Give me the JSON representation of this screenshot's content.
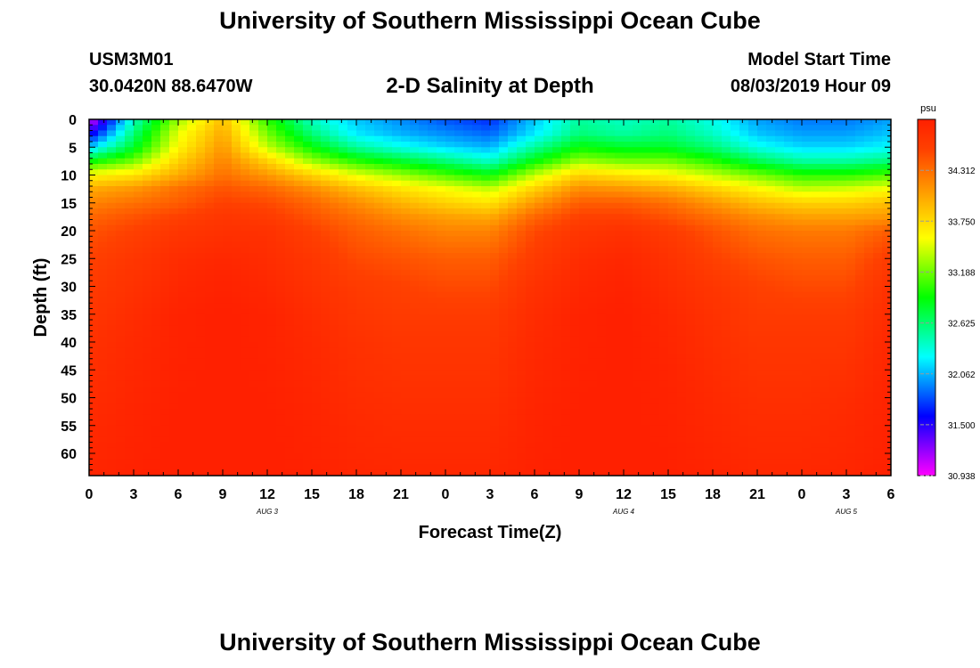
{
  "header": {
    "title": "University of Southern Mississippi Ocean Cube",
    "station": "USM3M01",
    "coords": "30.0420N 88.6470W",
    "plot_title": "2-D Salinity at Depth",
    "start_label": "Model Start Time",
    "start_value": "08/03/2019 Hour 09",
    "bottom_title": "University of Southern Mississippi Ocean Cube"
  },
  "chart_data": {
    "type": "heatmap",
    "title": "2-D Salinity at Depth",
    "xlabel": "Forecast Time(Z)",
    "ylabel": "Depth (ft)",
    "x_tick_labels": [
      "0",
      "3",
      "6",
      "9",
      "12",
      "15",
      "18",
      "21",
      "0",
      "3",
      "6",
      "9",
      "12",
      "15",
      "18",
      "21",
      "0",
      "3",
      "6"
    ],
    "x_hours": [
      0,
      3,
      6,
      9,
      12,
      15,
      18,
      21,
      24,
      27,
      30,
      33,
      36,
      39,
      42,
      45,
      48,
      51,
      54
    ],
    "date_labels": [
      {
        "text": "AUG 3",
        "hour": 12
      },
      {
        "text": "AUG 4",
        "hour": 36
      },
      {
        "text": "AUG 5",
        "hour": 51
      }
    ],
    "xlim": [
      0,
      54
    ],
    "y_tick_labels": [
      "0",
      "5",
      "10",
      "15",
      "20",
      "25",
      "30",
      "35",
      "40",
      "45",
      "50",
      "55",
      "60"
    ],
    "y_ticks": [
      0,
      5,
      10,
      15,
      20,
      25,
      30,
      35,
      40,
      45,
      50,
      55,
      60
    ],
    "ylim": [
      0,
      64
    ],
    "colorbar": {
      "unit": "psu",
      "min": 30.938,
      "max": 34.875,
      "tick_values": [
        34.312,
        33.75,
        33.188,
        32.625,
        32.062,
        31.5,
        30.938
      ],
      "tick_labels": [
        "34.312",
        "33.750",
        "33.188",
        "32.625",
        "32.062",
        "31.500",
        "30.938"
      ],
      "colors": [
        "#ff00ff",
        "#8000ff",
        "#0000ff",
        "#0080ff",
        "#00ffff",
        "#00ff80",
        "#00ff00",
        "#80ff00",
        "#ffff00",
        "#ffc000",
        "#ff8000",
        "#ff4000",
        "#ff2000"
      ]
    },
    "grid": {
      "hours": [
        0,
        3,
        6,
        9,
        12,
        15,
        18,
        21,
        24,
        27,
        30,
        33,
        36,
        39,
        42,
        45,
        48,
        51,
        54
      ],
      "depths": [
        0,
        2.5,
        5,
        7.5,
        10,
        12.5,
        15,
        17.5,
        20,
        25,
        30,
        35,
        40,
        45,
        50,
        55,
        60,
        64
      ],
      "values": [
        [
          31.0,
          32.4,
          33.3,
          33.9,
          33.0,
          32.4,
          32.1,
          31.95,
          31.8,
          31.7,
          32.1,
          32.5,
          32.4,
          32.5,
          32.3,
          32.0,
          31.9,
          31.9,
          32.0
        ],
        [
          31.5,
          32.6,
          33.5,
          34.0,
          33.2,
          32.6,
          32.2,
          32.05,
          31.95,
          31.85,
          32.2,
          32.6,
          32.5,
          32.6,
          32.4,
          32.1,
          32.0,
          32.0,
          32.1
        ],
        [
          32.1,
          32.8,
          33.6,
          34.1,
          33.4,
          32.9,
          32.5,
          32.3,
          32.15,
          32.05,
          32.5,
          32.9,
          32.8,
          32.8,
          32.6,
          32.3,
          32.15,
          32.15,
          32.25
        ],
        [
          32.9,
          33.2,
          33.8,
          34.2,
          33.8,
          33.3,
          33.0,
          32.8,
          32.6,
          32.4,
          32.9,
          33.3,
          33.2,
          33.2,
          33.0,
          32.7,
          32.5,
          32.5,
          32.6
        ],
        [
          33.6,
          33.7,
          34.0,
          34.3,
          34.1,
          33.8,
          33.5,
          33.3,
          33.1,
          32.9,
          33.4,
          33.8,
          33.7,
          33.6,
          33.4,
          33.2,
          33.0,
          33.0,
          33.1
        ],
        [
          34.0,
          34.1,
          34.3,
          34.45,
          34.35,
          34.15,
          33.9,
          33.7,
          33.55,
          33.4,
          33.8,
          34.15,
          34.1,
          34.0,
          33.8,
          33.6,
          33.4,
          33.45,
          33.55
        ],
        [
          34.2,
          34.3,
          34.4,
          34.55,
          34.5,
          34.35,
          34.15,
          33.95,
          33.8,
          33.7,
          34.1,
          34.4,
          34.4,
          34.3,
          34.1,
          33.9,
          33.8,
          33.8,
          33.9
        ],
        [
          34.35,
          34.45,
          34.55,
          34.65,
          34.6,
          34.45,
          34.3,
          34.15,
          34.05,
          34.0,
          34.35,
          34.55,
          34.55,
          34.45,
          34.3,
          34.15,
          34.05,
          34.05,
          34.1
        ],
        [
          34.45,
          34.55,
          34.65,
          34.7,
          34.7,
          34.55,
          34.4,
          34.3,
          34.2,
          34.2,
          34.5,
          34.65,
          34.7,
          34.6,
          34.45,
          34.3,
          34.25,
          34.25,
          34.4
        ],
        [
          34.55,
          34.65,
          34.75,
          34.8,
          34.75,
          34.65,
          34.5,
          34.45,
          34.4,
          34.4,
          34.6,
          34.75,
          34.8,
          34.7,
          34.55,
          34.45,
          34.4,
          34.4,
          34.6
        ],
        [
          34.6,
          34.7,
          34.8,
          34.85,
          34.8,
          34.7,
          34.6,
          34.55,
          34.5,
          34.5,
          34.7,
          34.8,
          34.85,
          34.75,
          34.65,
          34.55,
          34.5,
          34.5,
          34.7
        ],
        [
          34.65,
          34.75,
          34.85,
          34.88,
          34.85,
          34.75,
          34.65,
          34.6,
          34.6,
          34.6,
          34.75,
          34.85,
          34.88,
          34.8,
          34.7,
          34.6,
          34.6,
          34.6,
          34.75
        ],
        [
          34.7,
          34.78,
          34.85,
          34.88,
          34.85,
          34.78,
          34.7,
          34.65,
          34.65,
          34.65,
          34.78,
          34.85,
          34.88,
          34.82,
          34.72,
          34.65,
          34.65,
          34.65,
          34.8
        ],
        [
          34.72,
          34.8,
          34.86,
          34.88,
          34.86,
          34.8,
          34.72,
          34.68,
          34.68,
          34.68,
          34.8,
          34.86,
          34.88,
          34.84,
          34.75,
          34.68,
          34.68,
          34.7,
          34.82
        ],
        [
          34.75,
          34.82,
          34.87,
          34.88,
          34.87,
          34.82,
          34.75,
          34.72,
          34.72,
          34.72,
          34.82,
          34.87,
          34.88,
          34.85,
          34.78,
          34.72,
          34.72,
          34.75,
          34.84
        ],
        [
          34.78,
          34.84,
          34.88,
          34.88,
          34.88,
          34.84,
          34.78,
          34.75,
          34.75,
          34.75,
          34.84,
          34.88,
          34.88,
          34.86,
          34.8,
          34.75,
          34.75,
          34.78,
          34.85
        ],
        [
          34.8,
          34.85,
          34.88,
          34.88,
          34.88,
          34.85,
          34.8,
          34.78,
          34.78,
          34.78,
          34.85,
          34.88,
          34.88,
          34.87,
          34.82,
          34.78,
          34.78,
          34.8,
          34.86
        ],
        [
          34.82,
          34.86,
          34.88,
          34.88,
          34.88,
          34.86,
          34.82,
          34.8,
          34.8,
          34.8,
          34.86,
          34.88,
          34.88,
          34.87,
          34.84,
          34.8,
          34.8,
          34.82,
          34.87
        ]
      ]
    }
  }
}
